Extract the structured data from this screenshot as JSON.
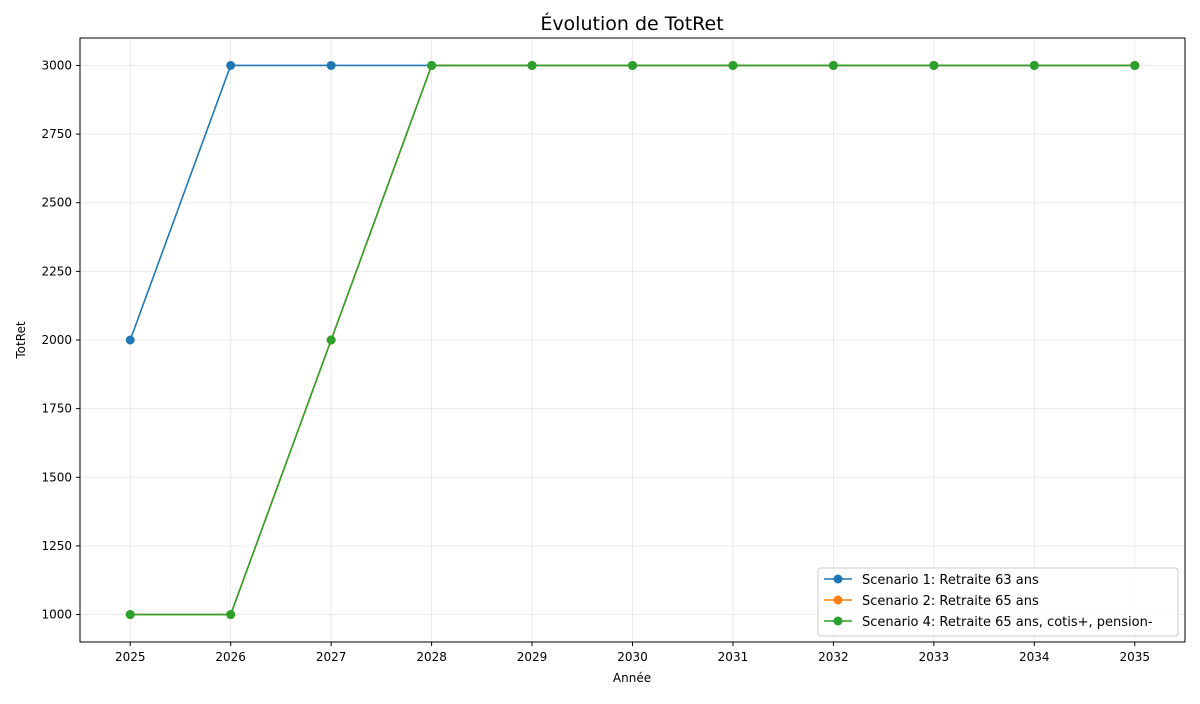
{
  "chart_data": {
    "type": "line",
    "title": "Évolution de TotRet",
    "xlabel": "Année",
    "ylabel": "TotRet",
    "x": [
      2025,
      2026,
      2027,
      2028,
      2029,
      2030,
      2031,
      2032,
      2033,
      2034,
      2035
    ],
    "xlim": [
      2024.5,
      2035.5
    ],
    "ylim": [
      900,
      3100
    ],
    "yticks": [
      1000,
      1250,
      1500,
      1750,
      2000,
      2250,
      2500,
      2750,
      3000
    ],
    "grid": true,
    "legend_position": "bottom-right",
    "series": [
      {
        "name": "Scenario 1: Retraite 63 ans",
        "color": "#1f77b4",
        "marker": "circle",
        "values": [
          2000,
          3000,
          3000,
          3000,
          3000,
          3000,
          3000,
          3000,
          3000,
          3000,
          3000
        ]
      },
      {
        "name": "Scenario 2: Retraite 65 ans",
        "color": "#ff7f0e",
        "marker": "circle",
        "values": [
          1000,
          1000,
          2000,
          3000,
          3000,
          3000,
          3000,
          3000,
          3000,
          3000,
          3000
        ]
      },
      {
        "name": "Scenario 4: Retraite 65 ans, cotis+, pension-",
        "color": "#2ca02c",
        "marker": "circle",
        "values": [
          1000,
          1000,
          2000,
          3000,
          3000,
          3000,
          3000,
          3000,
          3000,
          3000,
          3000
        ]
      }
    ]
  }
}
